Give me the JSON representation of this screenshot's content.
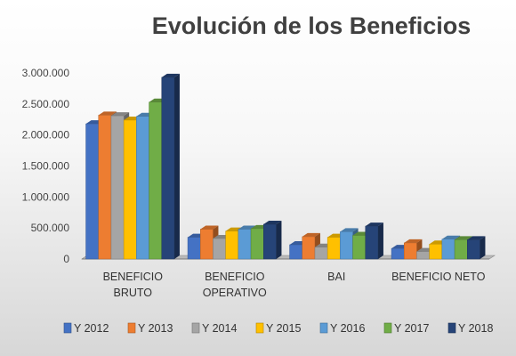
{
  "chart_data": {
    "type": "bar",
    "title": "Evolución de los Beneficios",
    "categories": [
      [
        "BENEFICIO",
        "BRUTO"
      ],
      [
        "BENEFICIO",
        "OPERATIVO"
      ],
      [
        "BAI"
      ],
      [
        "BENEFICIO NETO"
      ]
    ],
    "yticks": [
      "0",
      "500.000",
      "1.000.000",
      "1.500.000",
      "2.000.000",
      "2.500.000",
      "3.000.000"
    ],
    "ylim": [
      0,
      3000000
    ],
    "grid": false,
    "legend_position": "bottom",
    "series": [
      {
        "name": "Y 2012",
        "color": "#4472c4",
        "values": [
          2180000,
          350000,
          230000,
          170000
        ]
      },
      {
        "name": "Y 2013",
        "color": "#ed7d31",
        "values": [
          2320000,
          480000,
          360000,
          260000
        ]
      },
      {
        "name": "Y 2014",
        "color": "#a5a5a5",
        "values": [
          2310000,
          330000,
          190000,
          120000
        ]
      },
      {
        "name": "Y 2015",
        "color": "#ffc000",
        "values": [
          2240000,
          450000,
          350000,
          240000
        ]
      },
      {
        "name": "Y 2016",
        "color": "#5b9bd5",
        "values": [
          2300000,
          480000,
          440000,
          320000
        ]
      },
      {
        "name": "Y 2017",
        "color": "#70ad47",
        "values": [
          2530000,
          490000,
          380000,
          310000
        ]
      },
      {
        "name": "Y 2018",
        "color": "#264478",
        "values": [
          2930000,
          560000,
          530000,
          310000
        ]
      }
    ]
  }
}
